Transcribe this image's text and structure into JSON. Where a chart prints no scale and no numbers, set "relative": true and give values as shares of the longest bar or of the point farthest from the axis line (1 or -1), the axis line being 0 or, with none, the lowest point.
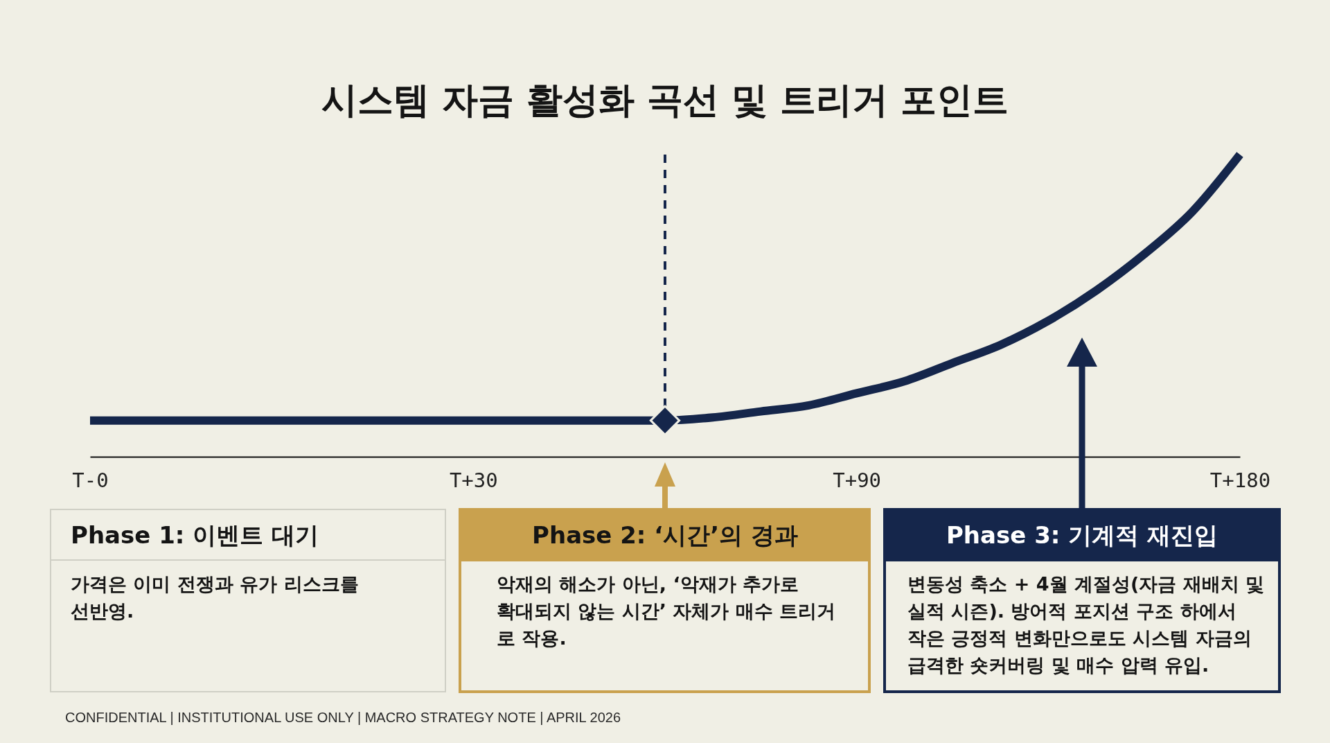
{
  "chart_data": {
    "type": "line",
    "title": "시스템 자금 활성화 곡선 및 트리거 포인트",
    "relative": true,
    "tick_labels": "x",
    "categories": [
      "T-0",
      null,
      null,
      null,
      null,
      null,
      null,
      null,
      "T+30",
      null,
      null,
      null,
      null,
      null,
      null,
      null,
      "T+90",
      null,
      null,
      null,
      null,
      null,
      null,
      null,
      "T+180"
    ],
    "series": [
      {
        "color": "#15264b",
        "line_style": "solid",
        "marker": "none",
        "values": [
          0.12,
          0.12,
          0.12,
          0.12,
          0.12,
          0.12,
          0.12,
          0.12,
          0.12,
          0.12,
          0.12,
          0.12,
          0.12,
          0.13,
          0.15,
          0.17,
          0.21,
          0.25,
          0.31,
          0.37,
          0.45,
          0.55,
          0.67,
          0.81,
          1
        ]
      },
      {
        "type": "scatter",
        "color": "#15264b",
        "marker": "diamond",
        "values": [
          null,
          null,
          null,
          null,
          null,
          null,
          null,
          null,
          null,
          null,
          null,
          null,
          0.12,
          null,
          null,
          null,
          null,
          null,
          null,
          null,
          null,
          null,
          null,
          null,
          null
        ]
      }
    ],
    "annotations": [
      "Phase 1: 이벤트 대기",
      "가격은 이미 전쟁과 유가 리스크를\n선반영.",
      "Phase 2: ‘시간’의 경과",
      "악재의 해소가 아닌, ‘악재가 추가로\n확대되지 않는 시간’ 자체가 매수 트리거\n로 작용.",
      "Phase 3: 기계적 재진입",
      "변동성 축소 + 4월 계절성(자금 재배치 및\n실적 시즌). 방어적 포지션 구조 하에서\n작은 긍정적 변화만으로도 시스템 자금의\n급격한 숏커버링 및 매수 압력 유입.",
      "CONFIDENTIAL | INSTITUTIONAL USE ONLY | MACRO STRATEGY NOTE | APRIL 2026"
    ]
  }
}
